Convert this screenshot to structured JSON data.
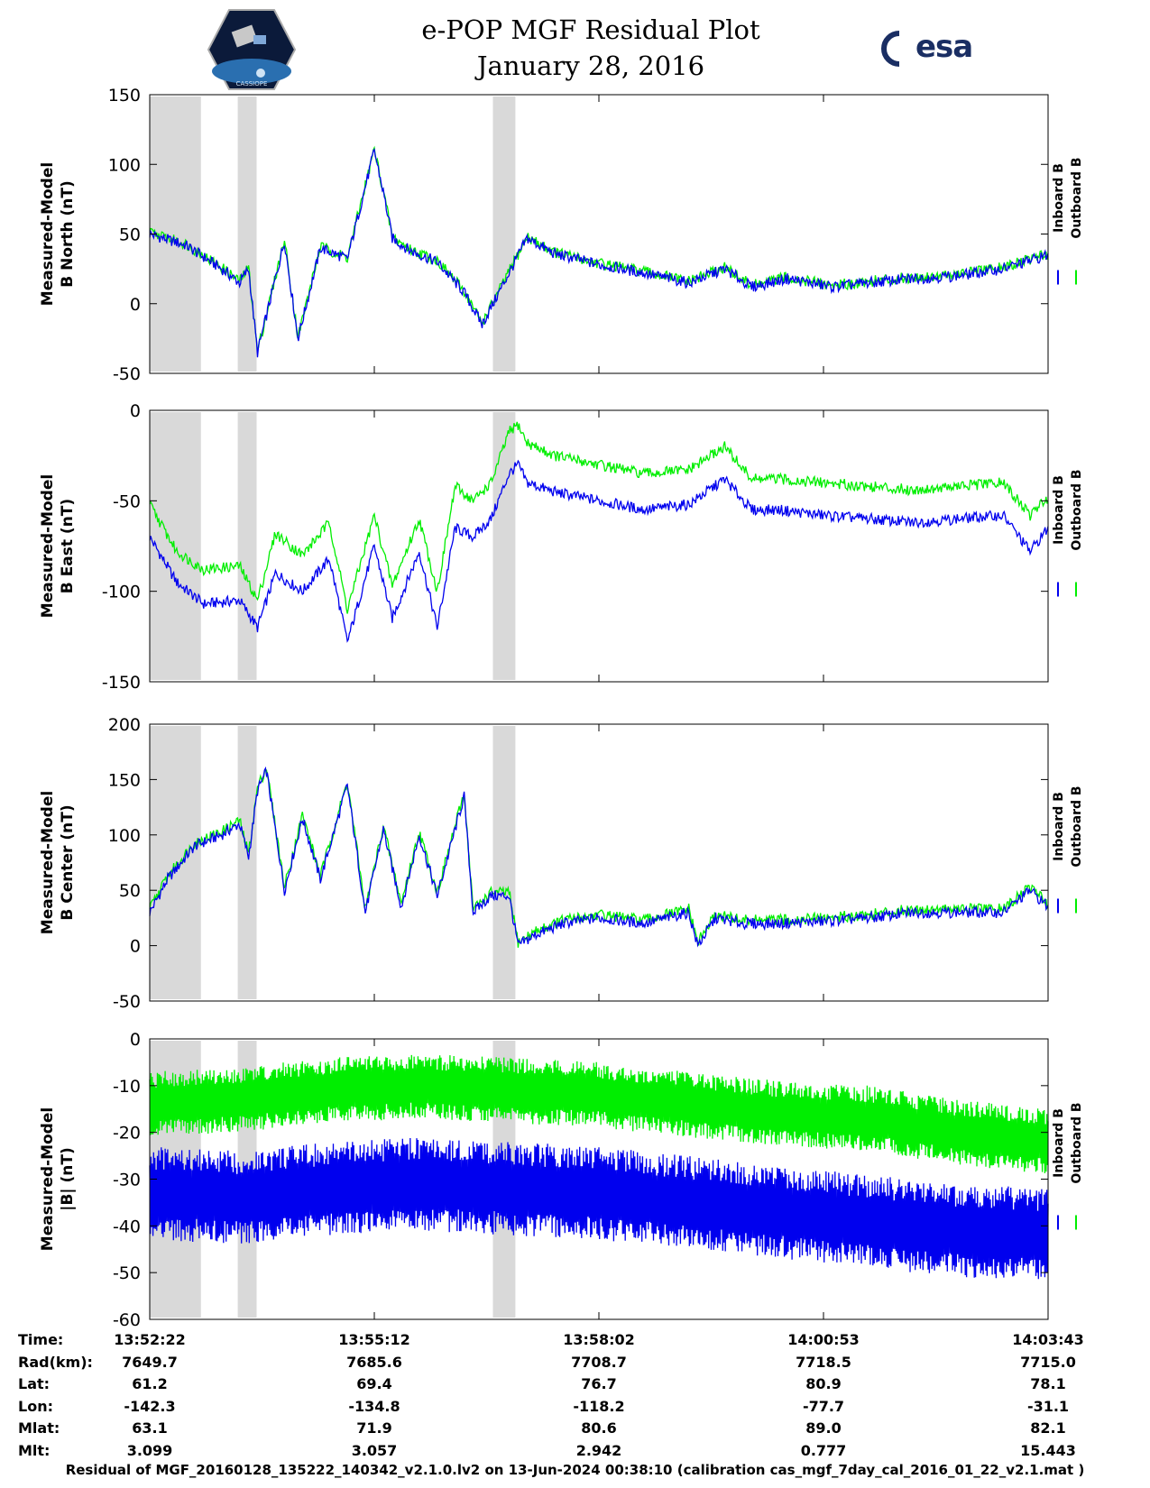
{
  "title": {
    "line1": "e-POP MGF Residual Plot",
    "line2": "January 28, 2016"
  },
  "logos": {
    "left": "CASSIOPE",
    "right": "esa"
  },
  "colors": {
    "inboard": "#0000ee",
    "outboard": "#00ee00",
    "shade": "#d9d9d9"
  },
  "legend": {
    "inboard": "Inboard B",
    "outboard": "Outboard B"
  },
  "shaded_intervals_x": [
    [
      0.0,
      0.057
    ],
    [
      0.098,
      0.119
    ],
    [
      0.382,
      0.407
    ]
  ],
  "chart_data": [
    {
      "type": "line",
      "ylabel": [
        "Measured-Model",
        "B North (nT)"
      ],
      "ylim": [
        -50,
        150
      ],
      "yticks": [
        150,
        100,
        50,
        0,
        -50
      ],
      "x": [
        0.0,
        0.04,
        0.08,
        0.1,
        0.11,
        0.12,
        0.135,
        0.15,
        0.165,
        0.19,
        0.22,
        0.25,
        0.26,
        0.27,
        0.29,
        0.32,
        0.35,
        0.37,
        0.4,
        0.42,
        0.45,
        0.5,
        0.55,
        0.6,
        0.64,
        0.67,
        0.71,
        0.76,
        0.8,
        0.85,
        0.9,
        0.95,
        1.0
      ],
      "series": [
        {
          "name": "Inboard B",
          "values": [
            50,
            42,
            25,
            15,
            25,
            -35,
            5,
            45,
            -25,
            40,
            32,
            110,
            80,
            47,
            38,
            30,
            8,
            -15,
            22,
            47,
            36,
            28,
            22,
            15,
            25,
            12,
            18,
            12,
            15,
            18,
            20,
            25,
            35
          ]
        },
        {
          "name": "Outboard B",
          "values": [
            51,
            43,
            26,
            16,
            26,
            -34,
            6,
            46,
            -24,
            41,
            33,
            111,
            81,
            48,
            39,
            31,
            9,
            -14,
            23,
            48,
            37,
            29,
            23,
            16,
            26,
            13,
            19,
            13,
            16,
            19,
            21,
            26,
            36
          ]
        }
      ]
    },
    {
      "type": "line",
      "ylabel": [
        "Measured-Model",
        "B East (nT)"
      ],
      "ylim": [
        -150,
        0
      ],
      "yticks": [
        0,
        -50,
        -100,
        -150
      ],
      "x": [
        0.0,
        0.03,
        0.06,
        0.1,
        0.12,
        0.14,
        0.17,
        0.2,
        0.22,
        0.25,
        0.27,
        0.3,
        0.32,
        0.34,
        0.36,
        0.38,
        0.4,
        0.41,
        0.42,
        0.45,
        0.5,
        0.55,
        0.6,
        0.64,
        0.67,
        0.7,
        0.75,
        0.8,
        0.85,
        0.9,
        0.95,
        0.98,
        1.0
      ],
      "series": [
        {
          "name": "Inboard B",
          "values": [
            -70,
            -95,
            -107,
            -105,
            -120,
            -90,
            -100,
            -82,
            -128,
            -75,
            -115,
            -78,
            -120,
            -65,
            -70,
            -60,
            -35,
            -30,
            -40,
            -45,
            -50,
            -55,
            -52,
            -38,
            -55,
            -55,
            -58,
            -60,
            -62,
            -60,
            -58,
            -78,
            -65
          ]
        },
        {
          "name": "Outboard B",
          "values": [
            -52,
            -78,
            -88,
            -86,
            -105,
            -68,
            -80,
            -62,
            -110,
            -58,
            -97,
            -60,
            -100,
            -42,
            -50,
            -40,
            -12,
            -8,
            -18,
            -25,
            -30,
            -35,
            -33,
            -20,
            -38,
            -38,
            -40,
            -42,
            -44,
            -42,
            -40,
            -58,
            -48
          ]
        }
      ]
    },
    {
      "type": "line",
      "ylabel": [
        "Measured-Model",
        "B Center (nT)"
      ],
      "ylim": [
        -50,
        200
      ],
      "yticks": [
        200,
        150,
        100,
        50,
        0,
        -50
      ],
      "x": [
        0.0,
        0.02,
        0.05,
        0.08,
        0.1,
        0.11,
        0.12,
        0.13,
        0.15,
        0.17,
        0.19,
        0.22,
        0.24,
        0.26,
        0.28,
        0.3,
        0.32,
        0.35,
        0.36,
        0.38,
        0.4,
        0.41,
        0.43,
        0.46,
        0.5,
        0.55,
        0.6,
        0.61,
        0.63,
        0.66,
        0.7,
        0.75,
        0.8,
        0.85,
        0.9,
        0.95,
        0.98,
        1.0
      ],
      "series": [
        {
          "name": "Inboard B",
          "values": [
            30,
            60,
            90,
            100,
            110,
            80,
            140,
            158,
            50,
            115,
            60,
            145,
            30,
            105,
            35,
            100,
            45,
            135,
            30,
            45,
            45,
            0,
            10,
            20,
            25,
            20,
            30,
            0,
            25,
            20,
            20,
            22,
            25,
            30,
            30,
            30,
            50,
            35
          ]
        },
        {
          "name": "Outboard B",
          "values": [
            33,
            63,
            93,
            103,
            113,
            83,
            143,
            161,
            53,
            118,
            63,
            148,
            33,
            108,
            38,
            103,
            48,
            138,
            33,
            48,
            48,
            3,
            13,
            23,
            28,
            23,
            33,
            3,
            28,
            23,
            23,
            25,
            28,
            33,
            33,
            33,
            53,
            38
          ]
        }
      ]
    },
    {
      "type": "line",
      "ylabel": [
        "Measured-Model",
        "|B| (nT)"
      ],
      "ylim": [
        -60,
        0
      ],
      "yticks": [
        0,
        -10,
        -20,
        -30,
        -40,
        -50,
        -60
      ],
      "x": [
        0.0,
        0.1,
        0.2,
        0.3,
        0.4,
        0.5,
        0.6,
        0.7,
        0.8,
        0.9,
        1.0
      ],
      "series": [
        {
          "name": "Inboard B",
          "values": [
            -33,
            -34,
            -32,
            -31,
            -32,
            -33,
            -35,
            -37,
            -39,
            -41,
            -42
          ]
        },
        {
          "name": "Outboard B",
          "values": [
            -14,
            -13,
            -11,
            -10,
            -11,
            -12,
            -14,
            -16,
            -17,
            -20,
            -22
          ]
        }
      ]
    }
  ],
  "xaxis_ticks": [
    0.0,
    0.25,
    0.5,
    0.75,
    1.0
  ],
  "info": {
    "labels": [
      "Time:",
      "Rad(km):",
      "Lat:",
      "Lon:",
      "Mlat:",
      "Mlt:"
    ],
    "columns": [
      [
        "13:52:22",
        "7649.7",
        "61.2",
        "-142.3",
        "63.1",
        "3.099"
      ],
      [
        "13:55:12",
        "7685.6",
        "69.4",
        "-134.8",
        "71.9",
        "3.057"
      ],
      [
        "13:58:02",
        "7708.7",
        "76.7",
        "-118.2",
        "80.6",
        "2.942"
      ],
      [
        "14:00:53",
        "7718.5",
        "80.9",
        "-77.7",
        "89.0",
        "0.777"
      ],
      [
        "14:03:43",
        "7715.0",
        "78.1",
        "-31.1",
        "82.1",
        "15.443"
      ]
    ]
  },
  "footer": "Residual of MGF_20160128_135222_140342_v2.1.0.lv2 on 13-Jun-2024 00:38:10 (calibration cas_mgf_7day_cal_2016_01_22_v2.1.mat )"
}
